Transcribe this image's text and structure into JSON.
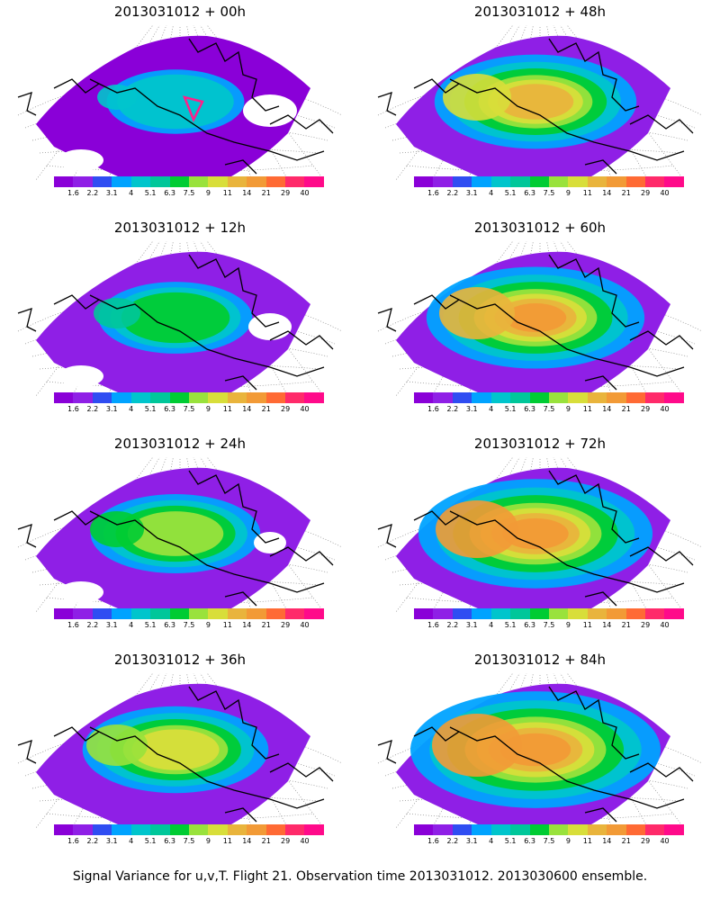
{
  "footer": "Signal Variance for u,v,T. Flight 21. Observation time 2013031012. 2013030600 ensemble.",
  "colorbar": {
    "colors": [
      "#8a00d8",
      "#8f1fe6",
      "#2f4df2",
      "#00a3ff",
      "#00c5cc",
      "#00c79a",
      "#00cc33",
      "#99e23c",
      "#d8de3a",
      "#e9b43c",
      "#f29a36",
      "#ff6a34",
      "#ff2a6a",
      "#ff0a8a"
    ],
    "labels": [
      "1.6",
      "2.2",
      "3.1",
      "4",
      "5.1",
      "6.3",
      "7.5",
      "9",
      "11",
      "14",
      "21",
      "29",
      "40"
    ]
  },
  "panels": [
    {
      "title": "2013031012 + 00h",
      "level": 0
    },
    {
      "title": "2013031012 + 48h",
      "level": 4
    },
    {
      "title": "2013031012 + 12h",
      "level": 1
    },
    {
      "title": "2013031012 + 60h",
      "level": 5
    },
    {
      "title": "2013031012 + 24h",
      "level": 2
    },
    {
      "title": "2013031012 + 72h",
      "level": 6
    },
    {
      "title": "2013031012 + 36h",
      "level": 3
    },
    {
      "title": "2013031012 + 84h",
      "level": 7
    }
  ]
}
